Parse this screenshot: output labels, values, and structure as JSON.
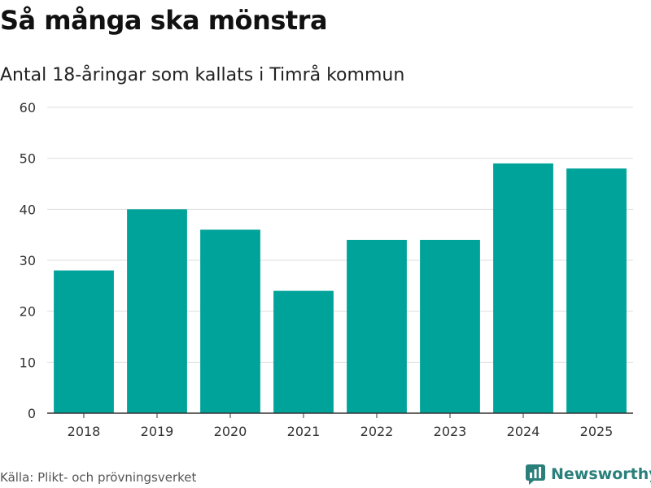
{
  "header": {
    "title": "Så många ska mönstra",
    "subtitle": "Antal 18-åringar som kallats i Timrå kommun"
  },
  "footer": {
    "source": "Källa: Plikt- och prövningsverket",
    "brand": "Newsworthy"
  },
  "colors": {
    "bar": "#00a39a",
    "grid": "#dddddd",
    "axis": "#333333",
    "brand": "#2a7f7a"
  },
  "chart_data": {
    "type": "bar",
    "title": "Så många ska mönstra",
    "subtitle": "Antal 18-åringar som kallats i Timrå kommun",
    "categories": [
      "2018",
      "2019",
      "2020",
      "2021",
      "2022",
      "2023",
      "2024",
      "2025"
    ],
    "values": [
      28,
      40,
      36,
      24,
      34,
      34,
      49,
      48
    ],
    "xlabel": "",
    "ylabel": "",
    "ylim": [
      0,
      60
    ],
    "yticks": [
      0,
      10,
      20,
      30,
      40,
      50,
      60
    ],
    "grid": true,
    "legend": "none"
  }
}
